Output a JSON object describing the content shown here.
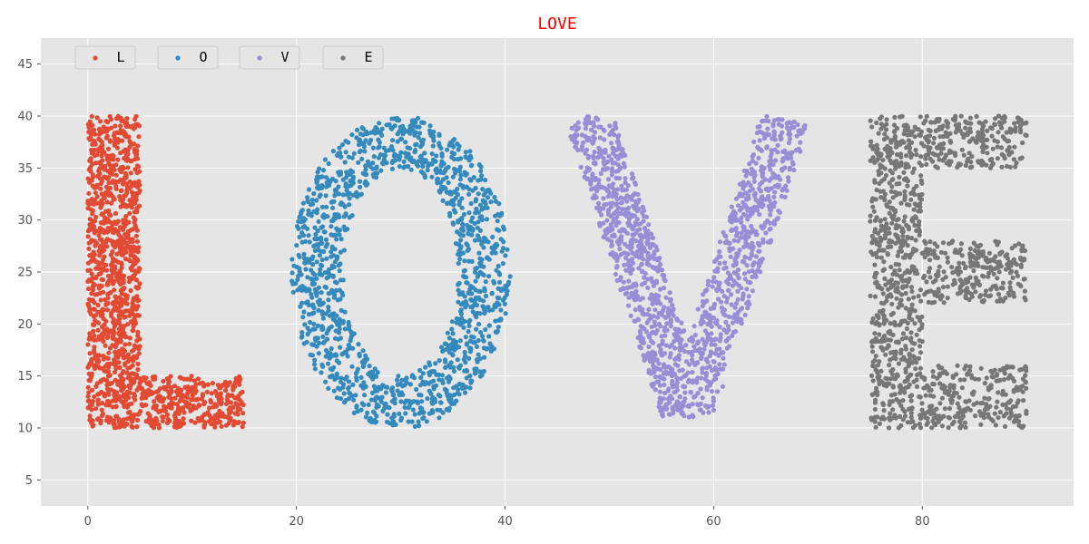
{
  "chart_data": {
    "type": "scatter",
    "title": "LOVE",
    "title_color": "#ff0000",
    "xlabel": "",
    "ylabel": "",
    "xlim": [
      -4.5,
      94.5
    ],
    "ylim": [
      2.5,
      47.5
    ],
    "x_ticks": [
      0,
      20,
      40,
      60,
      80
    ],
    "y_ticks": [
      5,
      10,
      15,
      20,
      25,
      30,
      35,
      40,
      45
    ],
    "grid": true,
    "background": "#e5e5e5",
    "grid_color": "#ffffff",
    "legend_position": "top-left",
    "points_per_letter": 1400,
    "series": [
      {
        "name": "L",
        "color": "#e24a33",
        "regions": [
          {
            "shape": "rect",
            "x": [
              0,
              5
            ],
            "y": [
              10,
              40
            ]
          },
          {
            "shape": "rect",
            "x": [
              5,
              15
            ],
            "y": [
              10,
              15
            ]
          }
        ]
      },
      {
        "name": "O",
        "color": "#348abd",
        "regions": [
          {
            "shape": "ellipse_ring",
            "center": [
              30,
              25
            ],
            "outer_radii": [
              10.5,
              15
            ],
            "inner_radii": [
              5.5,
              10
            ]
          }
        ]
      },
      {
        "name": "V",
        "color": "#988ed5",
        "regions": [
          {
            "shape": "band",
            "from": [
              48,
              40
            ],
            "to": [
              57.5,
              11
            ],
            "half_width": 2.3
          },
          {
            "shape": "band",
            "from": [
              67,
              40
            ],
            "to": [
              57.5,
              11
            ],
            "half_width": 2.3
          }
        ]
      },
      {
        "name": "E",
        "color": "#777777",
        "regions": [
          {
            "shape": "rect",
            "x": [
              75,
              80
            ],
            "y": [
              10,
              40
            ]
          },
          {
            "shape": "rect",
            "x": [
              80,
              90
            ],
            "y": [
              35,
              40
            ]
          },
          {
            "shape": "rect",
            "x": [
              80,
              90
            ],
            "y": [
              22,
              28
            ]
          },
          {
            "shape": "rect",
            "x": [
              80,
              90
            ],
            "y": [
              10,
              16
            ]
          }
        ]
      }
    ]
  }
}
